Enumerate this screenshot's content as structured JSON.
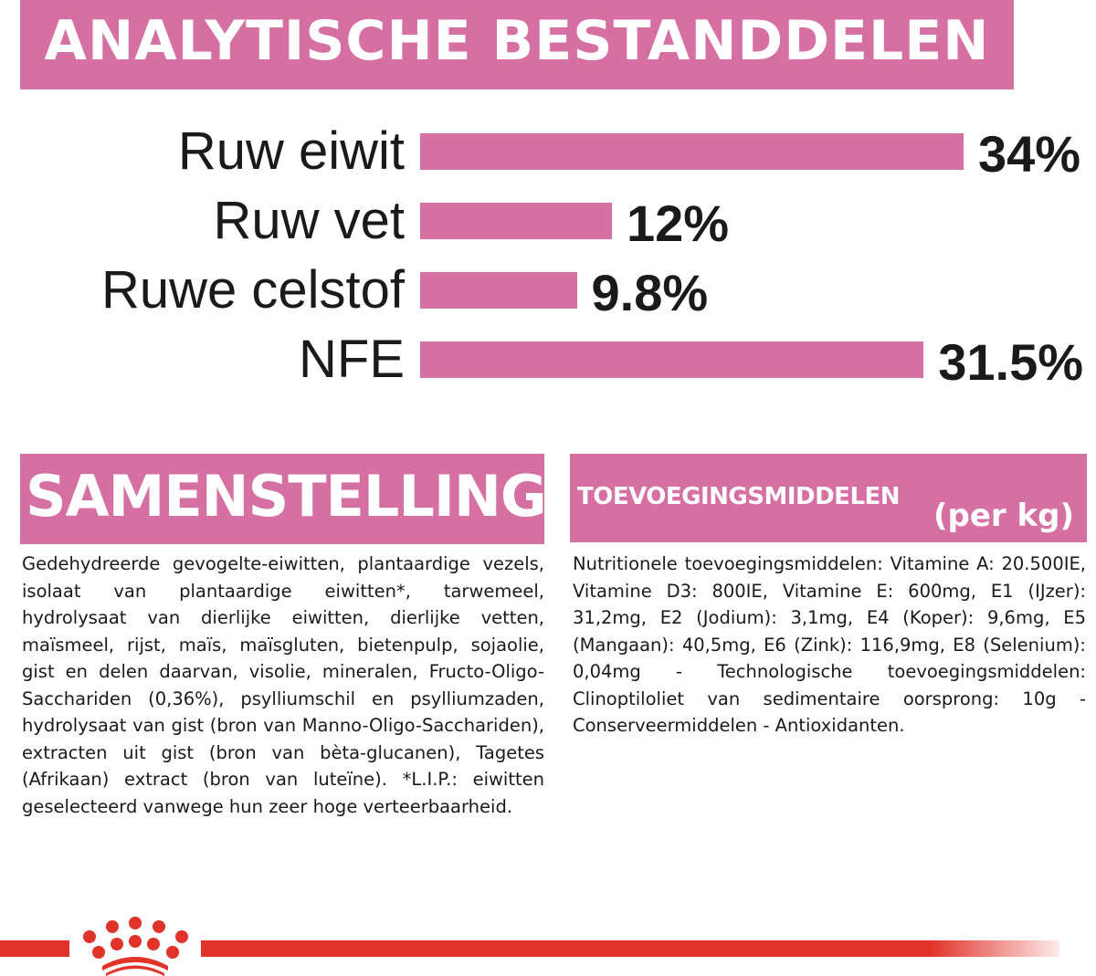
{
  "header": {
    "title": "ANALYTISCHE BESTANDDELEN"
  },
  "chart_data": {
    "type": "bar",
    "orientation": "horizontal",
    "categories": [
      "Ruw eiwit",
      "Ruw vet",
      "Ruwe celstof",
      "NFE"
    ],
    "values": [
      34,
      12,
      9.8,
      31.5
    ],
    "value_labels": [
      "34%",
      "12%",
      "9.8%",
      "31.5%"
    ],
    "unit": "%",
    "grid": false,
    "bar_color": "#d66fa2"
  },
  "samenstelling": {
    "title": "SAMENSTELLING",
    "text": "Gedehydreerde gevogelte-eiwitten, plantaardige vezels, isolaat van plantaardige eiwitten*, tarwemeel, hydrolysaat van dierlijke eiwitten, dierlijke vetten, maïsmeel, rijst, maïs, maïsgluten, bietenpulp, sojaolie, gist en delen daarvan, visolie, mineralen, Fructo-Oligo-Sacchariden (0,36%), psylliumschil en psylliumzaden, hydrolysaat van gist (bron van Manno-Oligo-Sacchariden), extracten uit gist (bron van bèta-glucanen), Tagetes (Afrikaan) extract (bron van luteïne). *L.I.P.: eiwitten geselecteerd vanwege hun zeer hoge verteerbaarheid."
  },
  "toevoegingsmiddelen": {
    "title": "TOEVOEGINGSMIDDELEN",
    "subtitle": "(per kg)",
    "text": "Nutritionele toevoegingsmiddelen: Vitamine A: 20.500IE, Vitamine D3: 800IE, Vitamine E: 600mg, E1 (IJzer): 31,2mg, E2 (Jodium): 3,1mg, E4 (Koper): 9,6mg, E5 (Mangaan): 40,5mg, E6 (Zink): 116,9mg, E8 (Selenium): 0,04mg - Technologische toevoegingsmiddelen: Clinoptiloliet van sedimentaire oorsprong: 10g - Conserveermiddelen - Antioxidanten."
  },
  "footer": {
    "logo": "royal-canin-crown",
    "logo_color": "#e2332b"
  },
  "colors": {
    "accent": "#d66fa2",
    "brand_red": "#e2332b"
  }
}
